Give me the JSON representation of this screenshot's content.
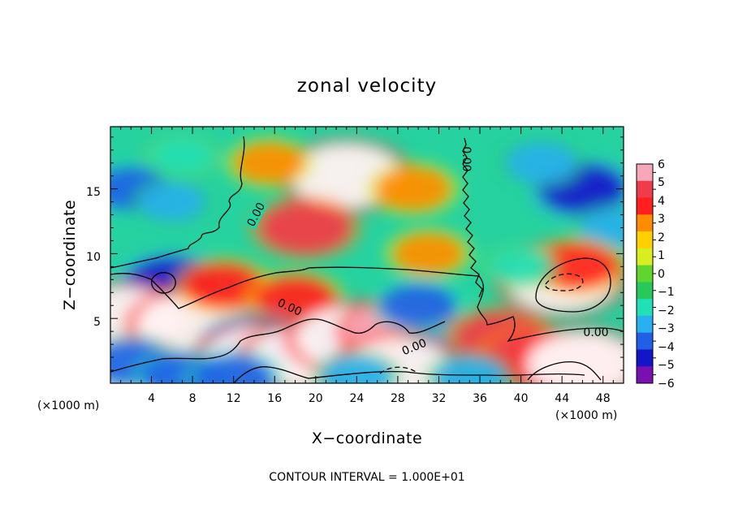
{
  "chart_data": {
    "type": "heatmap",
    "title": "zonal velocity",
    "xlabel": "X−coordinate",
    "ylabel": "Z−coordinate",
    "x_unit_left": "(×1000 m)",
    "x_unit_right": "(×1000 m)",
    "footer": "CONTOUR INTERVAL = 1.000E+01",
    "xlim": [
      0,
      50
    ],
    "ylim": [
      0,
      19.8
    ],
    "x_ticks": [
      4,
      8,
      12,
      16,
      20,
      24,
      28,
      32,
      36,
      40,
      44,
      48
    ],
    "x_tick_labels": [
      "4",
      "8",
      "12",
      "16",
      "20",
      "24",
      "28",
      "32",
      "36",
      "40",
      "44",
      "48"
    ],
    "y_ticks": [
      5,
      10,
      15
    ],
    "y_tick_labels": [
      "5",
      "10",
      "15"
    ],
    "colorbar": {
      "min": -6,
      "max": 6,
      "labels": [
        "6",
        "5",
        "4",
        "3",
        "2",
        "1",
        "0",
        "−1",
        "−2",
        "−3",
        "−4",
        "−5",
        "−6"
      ],
      "colors": [
        "#f7a8b8",
        "#f03c4a",
        "#ff1f1f",
        "#ff8c00",
        "#ffd000",
        "#d8ee20",
        "#5ed62e",
        "#28c85a",
        "#20e0b8",
        "#28b0f0",
        "#2060e6",
        "#1414c8",
        "#7a10b0"
      ],
      "saturation_color": "#ffffff"
    },
    "contour_labels": [
      "0.00",
      "0.00",
      "0.00",
      "0.00",
      "0.00"
    ],
    "blobs": [
      {
        "x": 23,
        "z": 16,
        "v": 7
      },
      {
        "x": 19,
        "z": 12,
        "v": 5
      },
      {
        "x": 29.5,
        "z": 15,
        "v": 3.5
      },
      {
        "x": 31,
        "z": 10,
        "v": 3
      },
      {
        "x": 15.5,
        "z": 17,
        "v": 3
      },
      {
        "x": 2,
        "z": 15,
        "v": -3.6
      },
      {
        "x": 6,
        "z": 14,
        "v": -2.5
      },
      {
        "x": 7,
        "z": 17.5,
        "v": -2
      },
      {
        "x": 46,
        "z": 15,
        "v": -4.6
      },
      {
        "x": 42,
        "z": 17,
        "v": -3
      },
      {
        "x": 49,
        "z": 12,
        "v": -2.5
      },
      {
        "x": 44,
        "z": 8,
        "v": 7
      },
      {
        "x": 45.5,
        "z": 9,
        "v": 4
      },
      {
        "x": 40,
        "z": 9,
        "v": -2
      },
      {
        "x": 6,
        "z": 7.7,
        "v": -5
      },
      {
        "x": 1.5,
        "z": 5,
        "v": 7
      },
      {
        "x": 8,
        "z": 4.5,
        "v": 7
      },
      {
        "x": 11,
        "z": 7.5,
        "v": 4
      },
      {
        "x": 18,
        "z": 6.5,
        "v": 4
      },
      {
        "x": 14,
        "z": 3,
        "v": -5
      },
      {
        "x": 14.5,
        "z": 2,
        "v": 7
      },
      {
        "x": 19,
        "z": 3,
        "v": -4
      },
      {
        "x": 19,
        "z": 2,
        "v": 7
      },
      {
        "x": 23.5,
        "z": 3.5,
        "v": -4
      },
      {
        "x": 23.5,
        "z": 3.5,
        "v": 7
      },
      {
        "x": 28,
        "z": 4,
        "v": 6
      },
      {
        "x": 30,
        "z": 6,
        "v": -3.5
      },
      {
        "x": 32,
        "z": 2.5,
        "v": -3
      },
      {
        "x": 38,
        "z": 3.5,
        "v": 5
      },
      {
        "x": 41,
        "z": 2,
        "v": 5
      },
      {
        "x": 45,
        "z": 1.2,
        "v": 6
      },
      {
        "x": 46,
        "z": 1.5,
        "v": 7
      },
      {
        "x": 28,
        "z": 1,
        "v": 7
      },
      {
        "x": 24,
        "z": 0.5,
        "v": -3
      },
      {
        "x": 2,
        "z": 0.5,
        "v": 7
      },
      {
        "x": 2,
        "z": 1.5,
        "v": -4
      },
      {
        "x": 7,
        "z": 0.5,
        "v": -4
      },
      {
        "x": 12,
        "z": 0.4,
        "v": -4
      },
      {
        "x": 35,
        "z": 0.4,
        "v": -3
      }
    ]
  }
}
